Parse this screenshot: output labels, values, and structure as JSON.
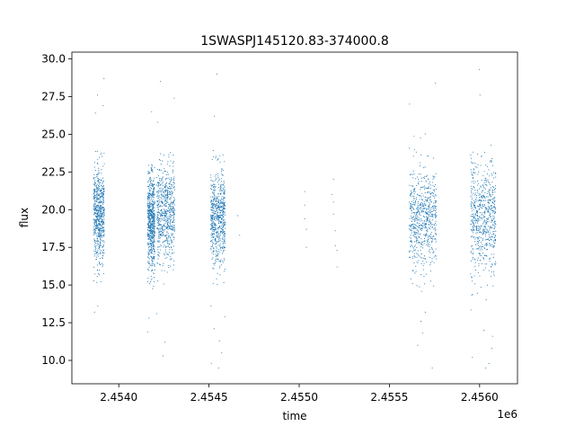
{
  "chart_data": {
    "type": "scatter",
    "title": "1SWASPJ145120.83-374000.8",
    "xlabel": "time",
    "ylabel": "flux",
    "x_offset_label": "1e6",
    "xlim": [
      2.45374,
      2.45621
    ],
    "ylim": [
      8.45,
      30.45
    ],
    "x_ticks": [
      2.454,
      2.4545,
      2.455,
      2.4555,
      2.456
    ],
    "x_tick_labels": [
      "2.4540",
      "2.4545",
      "2.4550",
      "2.4555",
      "2.4560"
    ],
    "y_ticks": [
      10.0,
      12.5,
      15.0,
      17.5,
      20.0,
      22.5,
      25.0,
      27.5,
      30.0
    ],
    "y_tick_labels": [
      "10.0",
      "12.5",
      "15.0",
      "17.5",
      "20.0",
      "22.5",
      "25.0",
      "27.5",
      "30.0"
    ],
    "grid": false,
    "legend": "none",
    "marker_color": "#1f77b4",
    "clusters": [
      {
        "x_range": [
          2.45386,
          2.45392
        ],
        "y_center": 19.7,
        "y_spread": 1.6,
        "y_core": [
          15.0,
          23.9
        ],
        "outliers": [
          13.2,
          13.6,
          26.4,
          27.6,
          28.7,
          26.9
        ]
      },
      {
        "x_range": [
          2.45416,
          2.4542
        ],
        "y_center": 19.3,
        "y_spread": 1.6,
        "y_core": [
          14.7,
          23.0
        ],
        "outliers": [
          12.8,
          11.9,
          26.5
        ]
      },
      {
        "x_range": [
          2.45421,
          2.45431
        ],
        "y_center": 19.8,
        "y_spread": 1.7,
        "y_core": [
          14.6,
          23.8
        ],
        "outliers": [
          13.1,
          11.2,
          10.3,
          27.4,
          28.5,
          25.8
        ]
      },
      {
        "x_range": [
          2.45451,
          2.45459
        ],
        "y_center": 19.6,
        "y_spread": 1.5,
        "y_core": [
          15.0,
          25.0
        ],
        "outliers": [
          9.5,
          9.8,
          10.5,
          11.3,
          12.1,
          12.9,
          13.6,
          26.2,
          29.0
        ]
      },
      {
        "x_range": [
          2.45561,
          2.45576
        ],
        "y_center": 19.5,
        "y_spread": 1.7,
        "y_core": [
          14.5,
          25.5
        ],
        "outliers": [
          9.5,
          11.0,
          11.8,
          12.6,
          13.2,
          27.0,
          28.4
        ]
      },
      {
        "x_range": [
          2.45595,
          2.45609
        ],
        "y_center": 19.5,
        "y_spread": 1.8,
        "y_core": [
          12.5,
          25.2
        ],
        "outliers": [
          9.5,
          9.8,
          10.2,
          10.8,
          11.6,
          12.0,
          27.6,
          29.3
        ]
      }
    ],
    "sparse_points": [
      {
        "x": 2.45466,
        "y": 19.6
      },
      {
        "x": 2.45467,
        "y": 18.3
      },
      {
        "x": 2.45503,
        "y": 21.2
      },
      {
        "x": 2.45503,
        "y": 20.3
      },
      {
        "x": 2.45503,
        "y": 19.4
      },
      {
        "x": 2.45504,
        "y": 18.7
      },
      {
        "x": 2.45504,
        "y": 17.5
      },
      {
        "x": 2.45519,
        "y": 22.0
      },
      {
        "x": 2.45519,
        "y": 20.5
      },
      {
        "x": 2.45519,
        "y": 19.7
      },
      {
        "x": 2.4552,
        "y": 18.6
      },
      {
        "x": 2.4552,
        "y": 17.6
      },
      {
        "x": 2.45521,
        "y": 16.2
      },
      {
        "x": 2.45521,
        "y": 17.3
      },
      {
        "x": 2.45518,
        "y": 21.0
      }
    ]
  }
}
